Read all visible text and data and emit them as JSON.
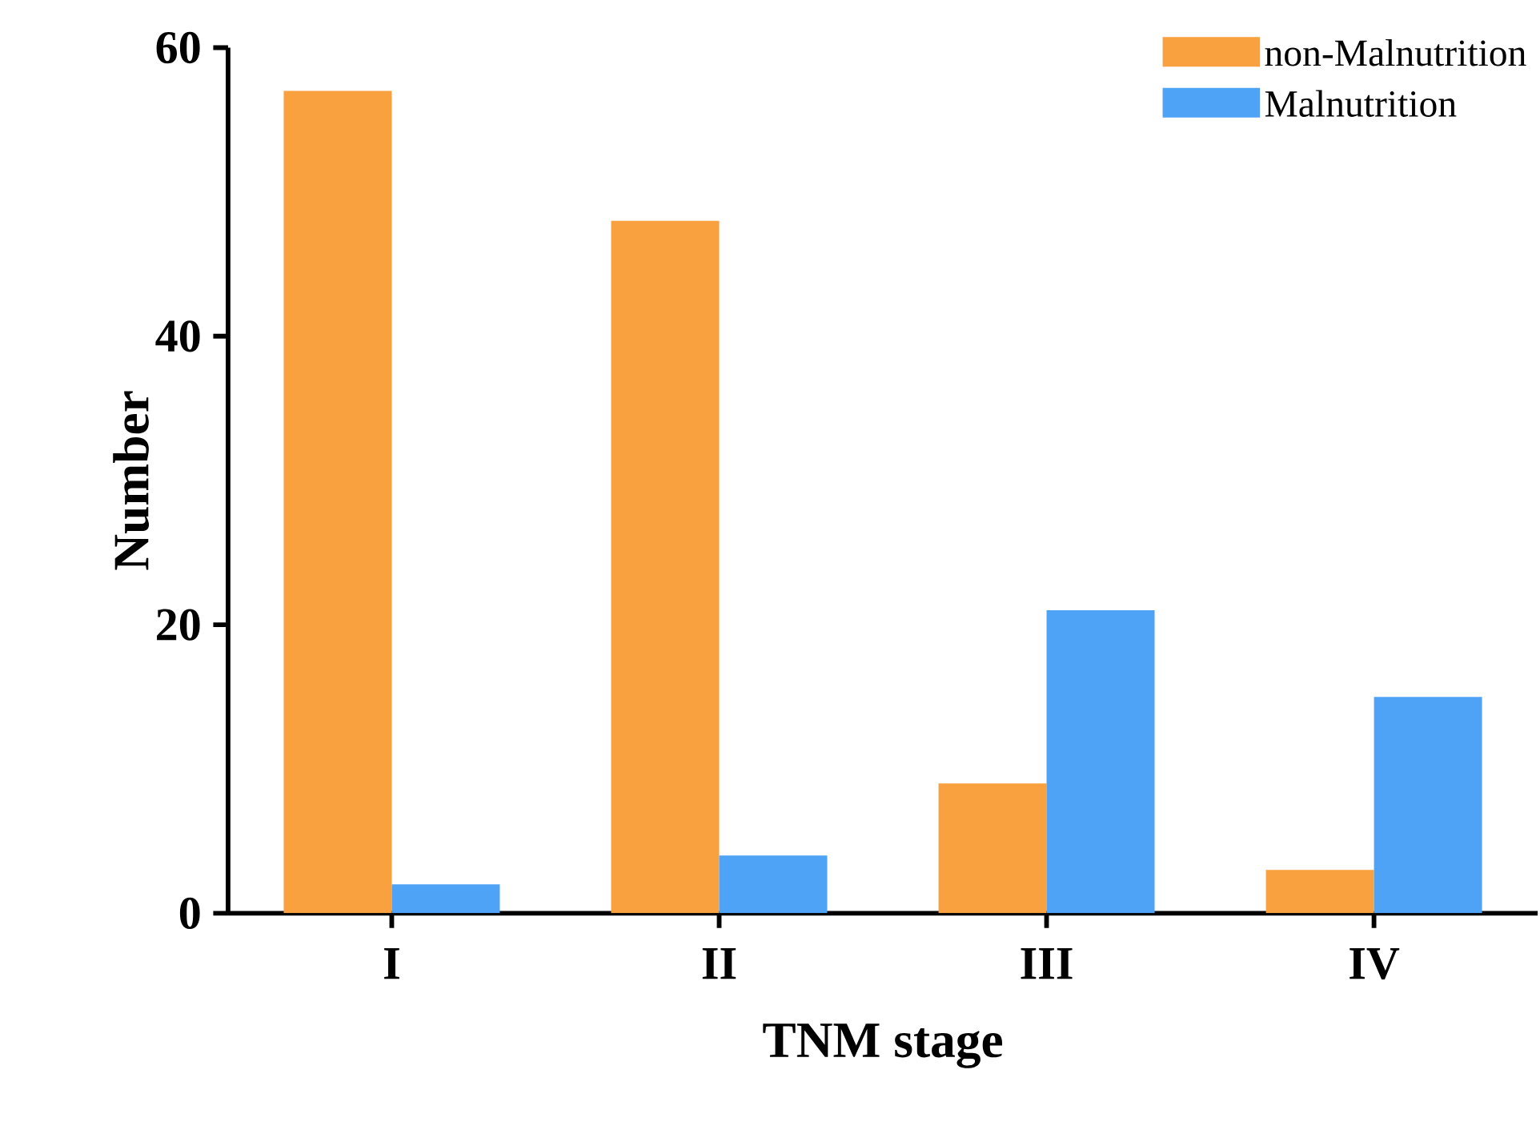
{
  "chart_data": {
    "type": "bar",
    "xlabel": "TNM stage",
    "ylabel": "Number",
    "categories": [
      "I",
      "II",
      "III",
      "IV"
    ],
    "series": [
      {
        "name": "non-Malnutrition",
        "color": "#f9a03f",
        "values": [
          57,
          48,
          9,
          3
        ]
      },
      {
        "name": "Malnutrition",
        "color": "#4fa3f7",
        "values": [
          2,
          4,
          21,
          15
        ]
      }
    ],
    "ylim": [
      0,
      60
    ],
    "yticks": [
      0,
      20,
      40,
      60
    ],
    "legend": "top right"
  }
}
